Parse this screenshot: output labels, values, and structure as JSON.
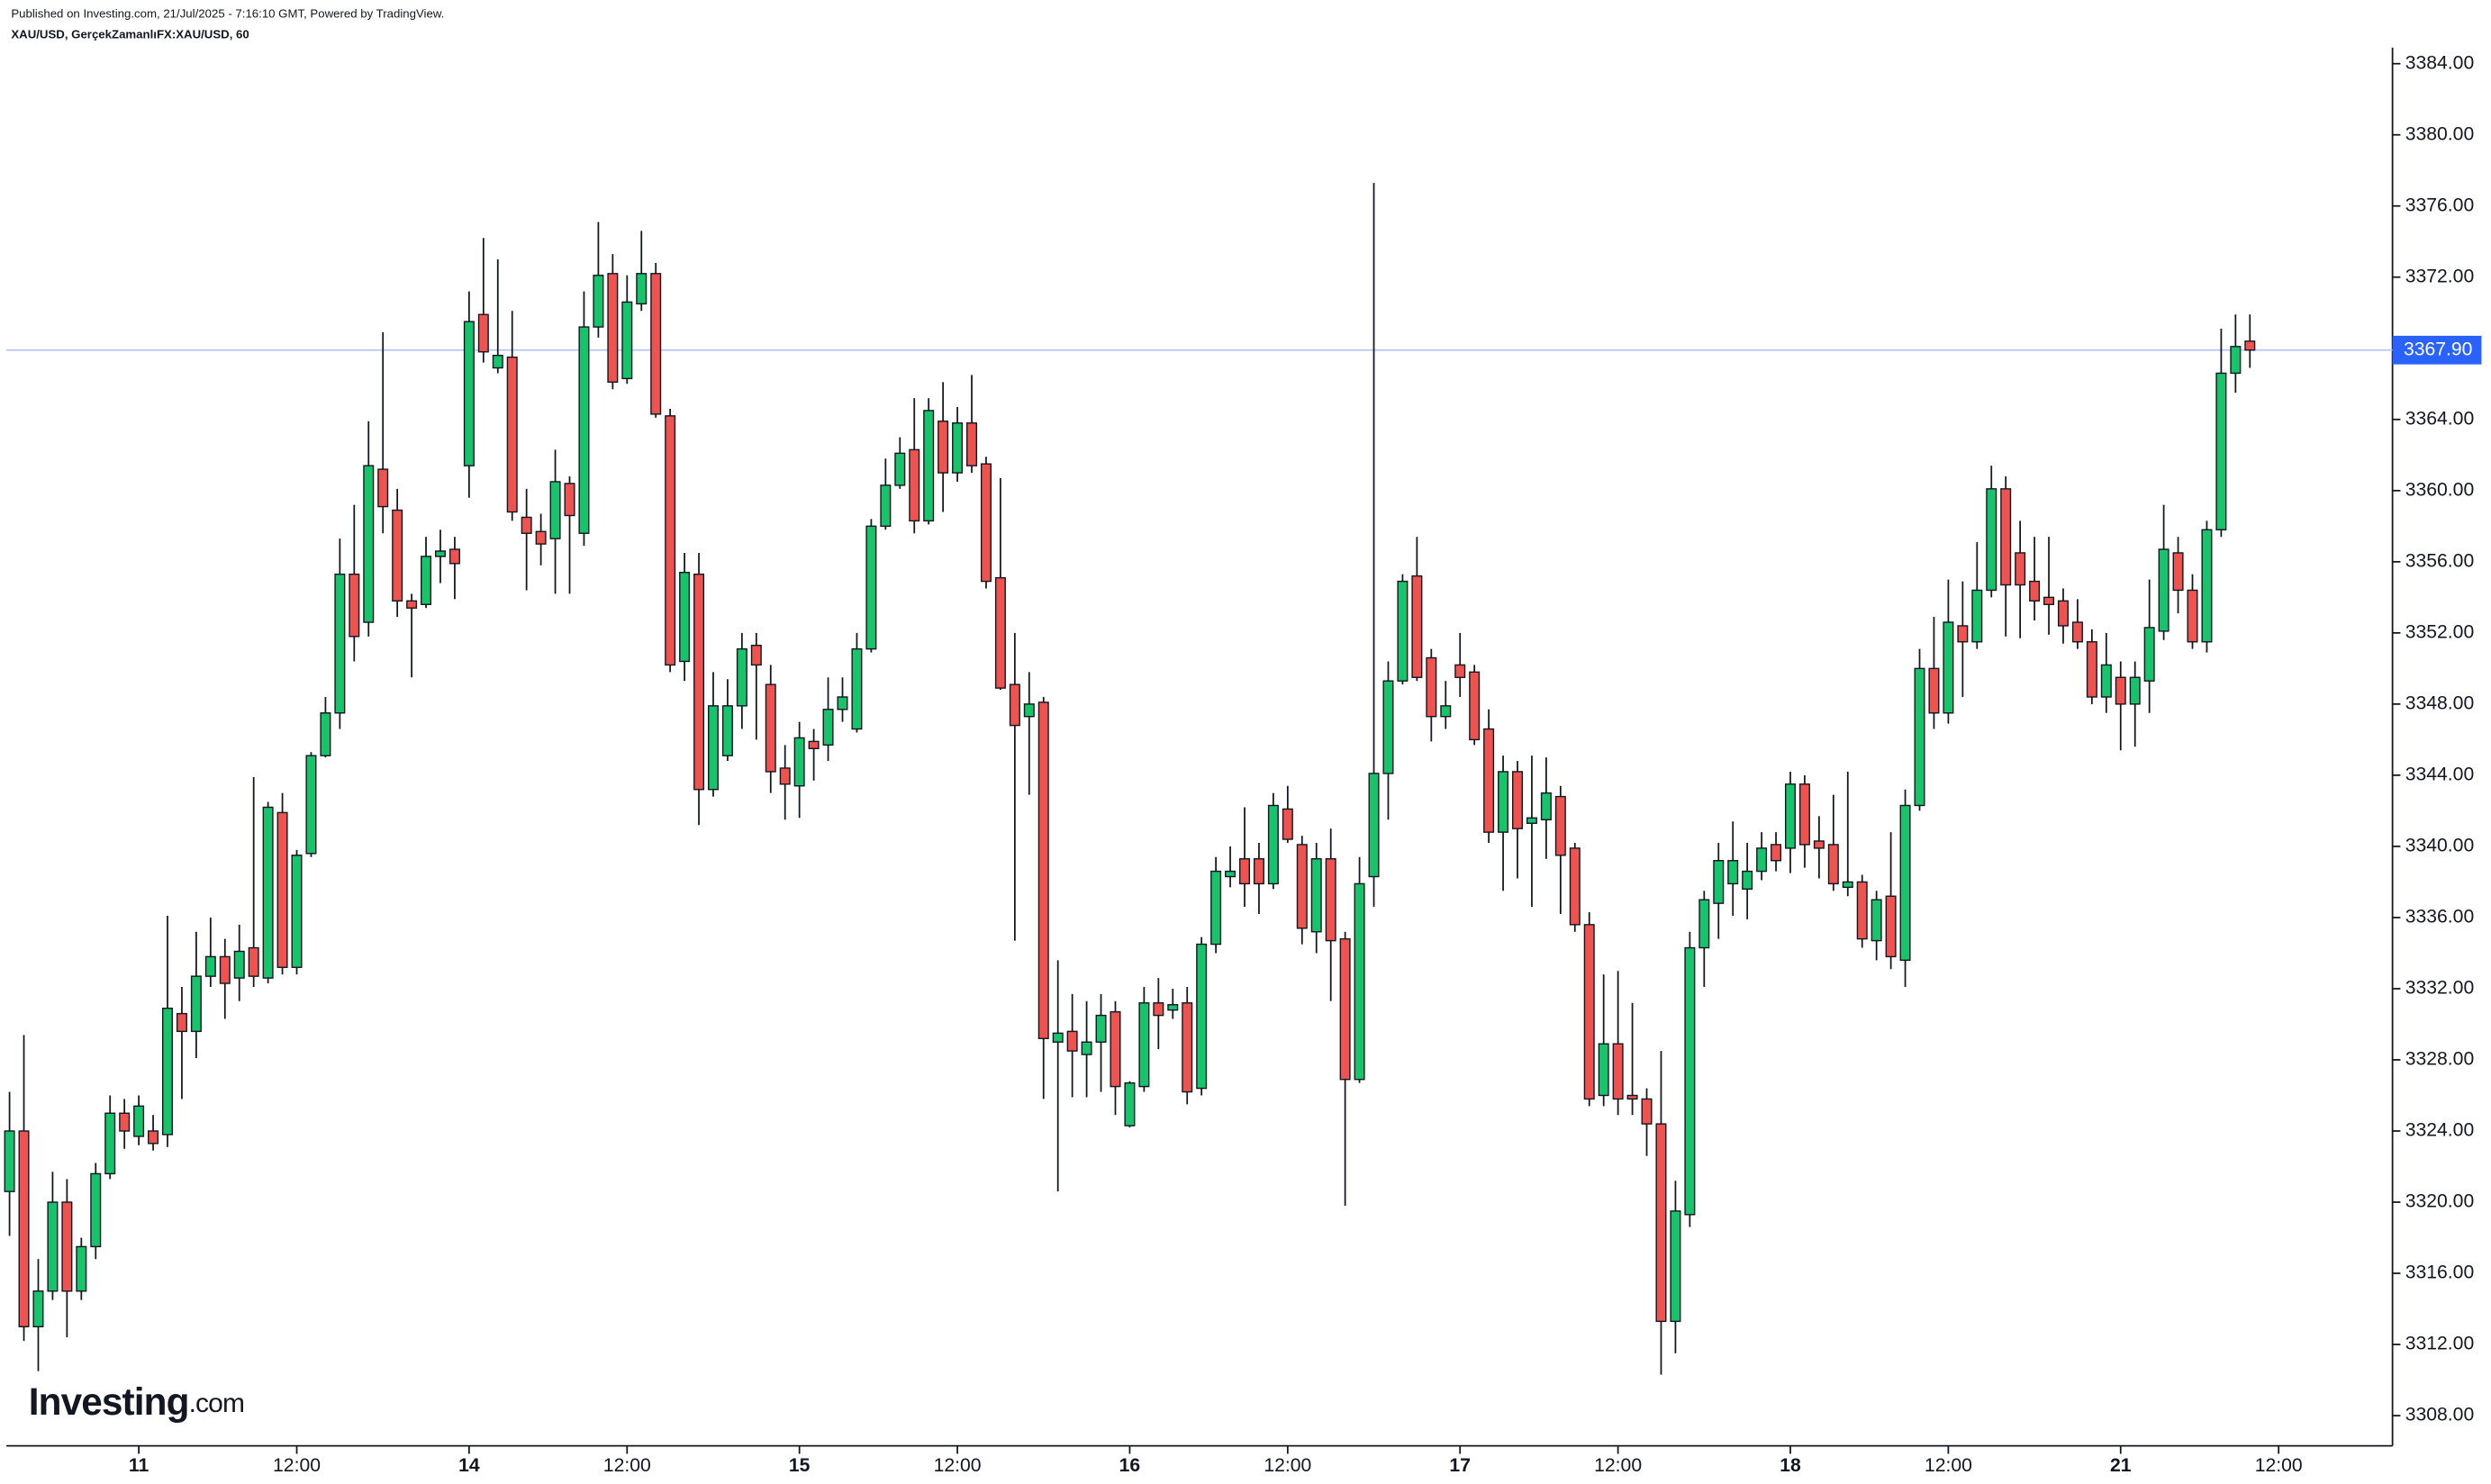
{
  "chart_data": {
    "type": "candlestick",
    "note": "Published on Investing.com, 21/Jul/2025 - 7:16:10 GMT, Powered by TradingView.",
    "title": "XAU/USD, GerçekZamanlıFX:XAU/USD, 60",
    "watermark": "Investing",
    "watermark_suffix": ".com",
    "up_color": "#17c36b",
    "down_color": "#ef5350",
    "last_price": {
      "value": 3367.9,
      "label": "3367.90"
    },
    "last_price_color": "#2962ff",
    "ylim": [
      3306.3,
      3384.9
    ],
    "yticks": [
      {
        "value": 3308,
        "label": "3308.00"
      },
      {
        "value": 3312,
        "label": "3312.00"
      },
      {
        "value": 3316,
        "label": "3316.00"
      },
      {
        "value": 3320,
        "label": "3320.00"
      },
      {
        "value": 3324,
        "label": "3324.00"
      },
      {
        "value": 3328,
        "label": "3328.00"
      },
      {
        "value": 3332,
        "label": "3332.00"
      },
      {
        "value": 3336,
        "label": "3336.00"
      },
      {
        "value": 3340,
        "label": "3340.00"
      },
      {
        "value": 3344,
        "label": "3344.00"
      },
      {
        "value": 3348,
        "label": "3348.00"
      },
      {
        "value": 3352,
        "label": "3352.00"
      },
      {
        "value": 3356,
        "label": "3356.00"
      },
      {
        "value": 3360,
        "label": "3360.00"
      },
      {
        "value": 3364,
        "label": "3364.00"
      },
      {
        "value": 3368,
        "label": "3368.00"
      },
      {
        "value": 3372,
        "label": "3372.00"
      },
      {
        "value": 3376,
        "label": "3376.00"
      },
      {
        "value": 3380,
        "label": "3380.00"
      },
      {
        "value": 3384,
        "label": "3384.00"
      }
    ],
    "categories": [
      null,
      null,
      null,
      null,
      null,
      null,
      null,
      null,
      null,
      "11",
      null,
      null,
      null,
      null,
      null,
      null,
      null,
      null,
      null,
      null,
      "12:00",
      null,
      null,
      null,
      null,
      null,
      null,
      null,
      null,
      null,
      null,
      null,
      "14",
      null,
      null,
      null,
      null,
      null,
      null,
      null,
      null,
      null,
      null,
      "12:00",
      null,
      null,
      null,
      null,
      null,
      null,
      null,
      null,
      null,
      null,
      null,
      "15",
      null,
      null,
      null,
      null,
      null,
      null,
      null,
      null,
      null,
      null,
      "12:00",
      null,
      null,
      null,
      null,
      null,
      null,
      null,
      null,
      null,
      null,
      null,
      "16",
      null,
      null,
      null,
      null,
      null,
      null,
      null,
      null,
      null,
      null,
      "12:00",
      null,
      null,
      null,
      null,
      null,
      null,
      null,
      null,
      null,
      null,
      null,
      "17",
      null,
      null,
      null,
      null,
      null,
      null,
      null,
      null,
      null,
      null,
      "12:00",
      null,
      null,
      null,
      null,
      null,
      null,
      null,
      null,
      null,
      null,
      null,
      "18",
      null,
      null,
      null,
      null,
      null,
      null,
      null,
      null,
      null,
      null,
      "12:00",
      null,
      null,
      null,
      null,
      null,
      null,
      null,
      null,
      null,
      null,
      null,
      "21",
      null,
      null,
      null,
      null,
      null,
      null,
      null,
      null,
      null,
      null,
      "12:00"
    ],
    "open": [
      3320.6,
      3324.0,
      3313.0,
      3315.0,
      3320.0,
      3315.0,
      3317.5,
      3321.6,
      3325.0,
      3323.7,
      3324.0,
      3323.8,
      3330.6,
      3329.6,
      3332.7,
      3333.8,
      3332.6,
      3334.3,
      3332.6,
      3341.9,
      3333.2,
      3339.6,
      3345.1,
      3347.5,
      3355.3,
      3352.6,
      3361.2,
      3358.9,
      3353.8,
      3353.6,
      3356.3,
      3356.7,
      3361.4,
      3369.9,
      3366.9,
      3367.5,
      3358.5,
      3357.7,
      3357.3,
      3360.4,
      3357.6,
      3369.2,
      3372.2,
      3366.3,
      3370.5,
      3372.2,
      3364.2,
      3350.4,
      3355.3,
      3343.2,
      3345.1,
      3347.9,
      3351.3,
      3349.1,
      3344.4,
      3343.4,
      3345.9,
      3345.7,
      3347.7,
      3346.6,
      3351.1,
      3358.0,
      3360.3,
      3362.3,
      3358.3,
      3363.9,
      3361.0,
      3363.8,
      3361.5,
      3355.1,
      3349.1,
      3347.3,
      3348.1,
      3329.0,
      3329.6,
      3328.3,
      3329.0,
      3330.7,
      3324.3,
      3326.5,
      3331.2,
      3330.8,
      3331.2,
      3326.4,
      3334.5,
      3338.3,
      3339.3,
      3339.3,
      3337.9,
      3342.1,
      3340.1,
      3335.2,
      3339.3,
      3334.8,
      3326.9,
      3338.3,
      3344.1,
      3349.3,
      3355.2,
      3350.6,
      3347.3,
      3350.2,
      3349.8,
      3346.6,
      3340.8,
      3344.2,
      3341.3,
      3341.5,
      3342.8,
      3339.9,
      3335.6,
      3326.0,
      3328.9,
      3326.0,
      3325.8,
      3324.4,
      3313.3,
      3319.3,
      3334.3,
      3336.8,
      3337.9,
      3337.6,
      3338.6,
      3340.1,
      3339.9,
      3343.5,
      3340.3,
      3340.1,
      3337.7,
      3338.0,
      3334.7,
      3337.2,
      3333.6,
      3342.3,
      3350.0,
      3347.5,
      3352.4,
      3351.5,
      3354.4,
      3360.1,
      3356.5,
      3354.9,
      3354.0,
      3353.8,
      3352.6,
      3351.5,
      3348.4,
      3349.5,
      3348.0,
      3349.3,
      3352.1,
      3356.5,
      3354.4,
      3351.5,
      3357.8,
      3366.6,
      3368.4,
      null,
      null
    ],
    "high": [
      3326.2,
      3329.4,
      3316.8,
      3321.7,
      3321.3,
      3318.0,
      3322.2,
      3326.0,
      3325.8,
      3326.0,
      3324.9,
      3336.1,
      3332.1,
      3335.2,
      3336.0,
      3334.8,
      3335.6,
      3343.9,
      3342.5,
      3343.0,
      3339.8,
      3345.3,
      3348.4,
      3357.3,
      3359.2,
      3363.9,
      3368.9,
      3360.1,
      3354.2,
      3357.4,
      3357.8,
      3357.4,
      3371.2,
      3374.2,
      3373.0,
      3370.1,
      3360.1,
      3358.7,
      3362.3,
      3360.8,
      3371.2,
      3375.1,
      3373.3,
      3372.1,
      3374.6,
      3372.8,
      3364.6,
      3356.5,
      3356.5,
      3349.8,
      3349.4,
      3352.0,
      3352.0,
      3350.2,
      3345.7,
      3347.0,
      3346.6,
      3349.5,
      3349.5,
      3352.0,
      3358.4,
      3361.8,
      3363.0,
      3365.2,
      3365.2,
      3366.1,
      3364.7,
      3366.5,
      3361.9,
      3360.7,
      3352.0,
      3349.8,
      3348.4,
      3333.6,
      3331.7,
      3331.3,
      3331.7,
      3331.3,
      3326.8,
      3332.1,
      3332.6,
      3332.0,
      3332.1,
      3334.9,
      3339.4,
      3340.0,
      3342.2,
      3340.2,
      3343.0,
      3343.4,
      3340.6,
      3340.2,
      3341.0,
      3335.2,
      3339.4,
      3377.3,
      3350.4,
      3355.3,
      3357.4,
      3351.1,
      3349.3,
      3352.0,
      3350.2,
      3347.7,
      3345.1,
      3344.8,
      3345.1,
      3345.0,
      3343.4,
      3340.2,
      3336.3,
      3332.8,
      3333.0,
      3331.2,
      3326.4,
      3328.5,
      3321.2,
      3335.2,
      3337.5,
      3340.2,
      3341.4,
      3340.2,
      3340.8,
      3340.8,
      3344.2,
      3344.0,
      3341.7,
      3342.9,
      3344.2,
      3338.4,
      3337.5,
      3340.8,
      3343.2,
      3351.1,
      3352.9,
      3355.0,
      3354.9,
      3357.1,
      3361.4,
      3360.8,
      3358.3,
      3357.4,
      3357.4,
      3354.5,
      3353.9,
      3352.2,
      3352.0,
      3350.4,
      3350.4,
      3355.0,
      3359.2,
      3357.4,
      3355.3,
      3358.3,
      3369.1,
      3369.9,
      3369.9,
      null,
      null
    ],
    "low": [
      3318.1,
      3312.2,
      3310.5,
      3314.5,
      3312.4,
      3314.5,
      3316.8,
      3321.3,
      3323.0,
      3323.2,
      3322.9,
      3323.1,
      3325.8,
      3328.1,
      3332.1,
      3330.3,
      3331.3,
      3332.1,
      3332.3,
      3332.8,
      3332.8,
      3339.4,
      3345.0,
      3346.6,
      3350.4,
      3351.8,
      3357.6,
      3352.9,
      3349.5,
      3353.4,
      3354.8,
      3353.9,
      3359.6,
      3367.2,
      3366.6,
      3358.3,
      3354.4,
      3355.8,
      3354.2,
      3354.2,
      3356.9,
      3368.6,
      3365.7,
      3366.0,
      3370.1,
      3364.1,
      3349.8,
      3349.3,
      3341.2,
      3342.8,
      3344.8,
      3346.6,
      3346.0,
      3343.0,
      3341.5,
      3341.6,
      3343.7,
      3344.8,
      3347.0,
      3346.4,
      3350.9,
      3357.8,
      3360.1,
      3357.6,
      3358.1,
      3358.8,
      3360.5,
      3361.0,
      3354.5,
      3348.8,
      3334.7,
      3342.9,
      3325.8,
      3320.6,
      3325.9,
      3325.9,
      3326.2,
      3324.9,
      3324.2,
      3326.2,
      3328.6,
      3330.3,
      3325.5,
      3326.0,
      3334.0,
      3337.7,
      3336.6,
      3336.2,
      3337.6,
      3340.2,
      3334.5,
      3334.0,
      3331.3,
      3319.8,
      3326.7,
      3336.6,
      3341.5,
      3349.1,
      3349.3,
      3345.9,
      3346.6,
      3348.4,
      3345.7,
      3340.2,
      3337.5,
      3338.2,
      3336.6,
      3339.3,
      3336.2,
      3335.2,
      3325.4,
      3325.4,
      3324.9,
      3324.9,
      3322.6,
      3310.3,
      3311.5,
      3318.6,
      3332.1,
      3334.8,
      3336.1,
      3335.9,
      3338.1,
      3338.6,
      3338.5,
      3338.8,
      3338.2,
      3337.5,
      3337.2,
      3334.3,
      3333.6,
      3333.1,
      3332.1,
      3342.0,
      3346.6,
      3346.9,
      3348.4,
      3351.1,
      3354.0,
      3351.8,
      3351.7,
      3352.7,
      3351.9,
      3351.4,
      3351.1,
      3348.0,
      3347.5,
      3345.4,
      3345.6,
      3347.5,
      3351.6,
      3353.1,
      3351.1,
      3350.9,
      3357.4,
      3365.5,
      3366.9,
      null,
      null
    ],
    "close": [
      3324.0,
      3313.0,
      3315.0,
      3320.0,
      3315.0,
      3317.5,
      3321.6,
      3325.0,
      3324.0,
      3325.4,
      3323.3,
      3330.9,
      3329.6,
      3332.7,
      3333.8,
      3332.3,
      3334.1,
      3332.7,
      3342.2,
      3333.2,
      3339.5,
      3345.1,
      3347.5,
      3355.3,
      3351.8,
      3361.4,
      3359.1,
      3353.8,
      3353.4,
      3356.3,
      3356.6,
      3355.9,
      3369.5,
      3367.8,
      3367.6,
      3358.8,
      3357.6,
      3357.0,
      3360.5,
      3358.6,
      3369.2,
      3372.1,
      3366.1,
      3370.6,
      3372.2,
      3364.3,
      3350.2,
      3355.4,
      3343.2,
      3347.9,
      3347.9,
      3351.1,
      3350.2,
      3344.2,
      3343.5,
      3346.1,
      3345.5,
      3347.7,
      3348.4,
      3351.1,
      3358.0,
      3360.3,
      3362.1,
      3358.3,
      3364.5,
      3361.0,
      3363.8,
      3361.4,
      3354.9,
      3348.9,
      3346.8,
      3348.0,
      3329.2,
      3329.5,
      3328.5,
      3329.0,
      3330.5,
      3326.5,
      3326.7,
      3331.2,
      3330.5,
      3331.1,
      3326.2,
      3334.5,
      3338.6,
      3338.6,
      3337.9,
      3337.9,
      3342.3,
      3340.4,
      3335.4,
      3339.3,
      3334.7,
      3326.9,
      3337.9,
      3344.1,
      3349.3,
      3354.9,
      3349.5,
      3347.3,
      3347.9,
      3349.5,
      3346.0,
      3340.8,
      3344.2,
      3341.0,
      3341.6,
      3343.0,
      3339.5,
      3335.6,
      3325.8,
      3328.9,
      3325.8,
      3325.8,
      3324.4,
      3313.3,
      3319.5,
      3334.3,
      3337.0,
      3339.2,
      3339.2,
      3338.6,
      3339.9,
      3339.2,
      3343.5,
      3340.1,
      3339.9,
      3337.9,
      3338.0,
      3334.8,
      3337.0,
      3333.8,
      3342.3,
      3350.0,
      3347.5,
      3352.6,
      3351.5,
      3354.4,
      3360.1,
      3354.7,
      3354.7,
      3353.8,
      3353.6,
      3352.4,
      3351.5,
      3348.4,
      3350.2,
      3348.0,
      3349.5,
      3352.3,
      3356.7,
      3354.4,
      3351.5,
      3357.8,
      3366.6,
      3368.1,
      3367.9,
      null,
      null
    ]
  }
}
